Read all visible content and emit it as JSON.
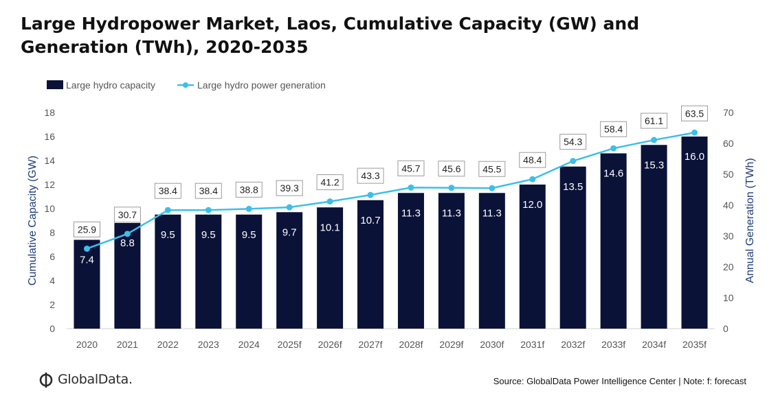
{
  "title": "Large Hydropower Market, Laos, Cumulative Capacity (GW) and Generation (TWh), 2020-2035",
  "source_note": "Source: GlobalData Power Intelligence Center | Note: f: forecast",
  "logo_text": "GlobalData.",
  "colors": {
    "bar": "#0b1238",
    "line": "#3cbfe8",
    "axis_text": "#555555",
    "ylabel": "#1f3d7a"
  },
  "chart_data": {
    "type": "bar",
    "categories": [
      "2020",
      "2021",
      "2022",
      "2023",
      "2024",
      "2025f",
      "2026f",
      "2027f",
      "2028f",
      "2029f",
      "2030f",
      "2031f",
      "2032f",
      "2033f",
      "2034f",
      "2035f"
    ],
    "series": [
      {
        "name": "Large hydro capacity",
        "type": "bar",
        "axis": "left",
        "values": [
          7.4,
          8.8,
          9.5,
          9.5,
          9.5,
          9.7,
          10.1,
          10.7,
          11.3,
          11.3,
          11.3,
          12.0,
          13.5,
          14.6,
          15.3,
          16.0
        ]
      },
      {
        "name": "Large hydro power generation",
        "type": "line",
        "axis": "right",
        "values": [
          25.9,
          30.7,
          38.4,
          38.4,
          38.8,
          39.3,
          41.2,
          43.3,
          45.7,
          45.6,
          45.5,
          48.4,
          54.3,
          58.4,
          61.1,
          63.5
        ]
      }
    ],
    "ylabel_left": "Cumulative Capacity (GW)",
    "ylabel_right": "Annual Generation (TWh)",
    "ylim_left": [
      0,
      18
    ],
    "yticks_left": [
      0,
      2,
      4,
      6,
      8,
      10,
      12,
      14,
      16,
      18
    ],
    "ylim_right": [
      0,
      70
    ],
    "yticks_right": [
      0,
      10,
      20,
      30,
      40,
      50,
      60,
      70
    ],
    "grid": false,
    "legend_position": "top-left"
  }
}
